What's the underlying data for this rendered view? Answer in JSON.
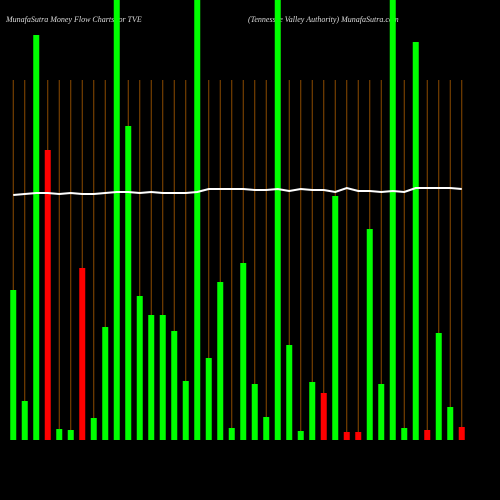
{
  "chart_data": {
    "type": "bar",
    "title": "MunafaSutra  Money Flow  Charts for TVE",
    "subtitle": "(Tennessee  Valley Authority) MunafaSutra.com",
    "categories": [
      null,
      null,
      null,
      null,
      null,
      null,
      null,
      null,
      null,
      null,
      null,
      null,
      null,
      null,
      null,
      null,
      null,
      null,
      null,
      null,
      null,
      null,
      null,
      null,
      null,
      null,
      null,
      null,
      null,
      null,
      null,
      null,
      null,
      null,
      null,
      null,
      null,
      null,
      null,
      null
    ],
    "ylim": [
      0,
      440
    ],
    "series": [
      {
        "type": "bar",
        "values": [
          150,
          39,
          405,
          290,
          11,
          10,
          172,
          22,
          113,
          440,
          314,
          144,
          125,
          125,
          109,
          59,
          440,
          82,
          158,
          12,
          177,
          56,
          23,
          440,
          95,
          9,
          58,
          47,
          244,
          8,
          8,
          211,
          56,
          440,
          12,
          398,
          10,
          107,
          33,
          13
        ],
        "colors": [
          "#00ff00",
          "#00ff00",
          "#00ff00",
          "#ff0000",
          "#00ff00",
          "#00ff00",
          "#ff0000",
          "#00ff00",
          "#00ff00",
          "#00ff00",
          "#00ff00",
          "#00ff00",
          "#00ff00",
          "#00ff00",
          "#00ff00",
          "#00ff00",
          "#00ff00",
          "#00ff00",
          "#00ff00",
          "#00ff00",
          "#00ff00",
          "#00ff00",
          "#00ff00",
          "#00ff00",
          "#00ff00",
          "#00ff00",
          "#00ff00",
          "#ff0000",
          "#00ff00",
          "#ff0000",
          "#ff0000",
          "#00ff00",
          "#00ff00",
          "#00ff00",
          "#00ff00",
          "#00ff00",
          "#ff0000",
          "#00ff00",
          "#00ff00",
          "#ff0000"
        ]
      },
      {
        "type": "line",
        "color": "#ffffff",
        "values": [
          245,
          246,
          247,
          247,
          246,
          247,
          246,
          246,
          247,
          248,
          248,
          247,
          248,
          247,
          247,
          247,
          248,
          251,
          251,
          251,
          251,
          250,
          250,
          251,
          249,
          251,
          250,
          250,
          248,
          252,
          249,
          249,
          248,
          249,
          248,
          252,
          252,
          252,
          252,
          251
        ]
      }
    ],
    "grid_color": "#8b4a00"
  }
}
